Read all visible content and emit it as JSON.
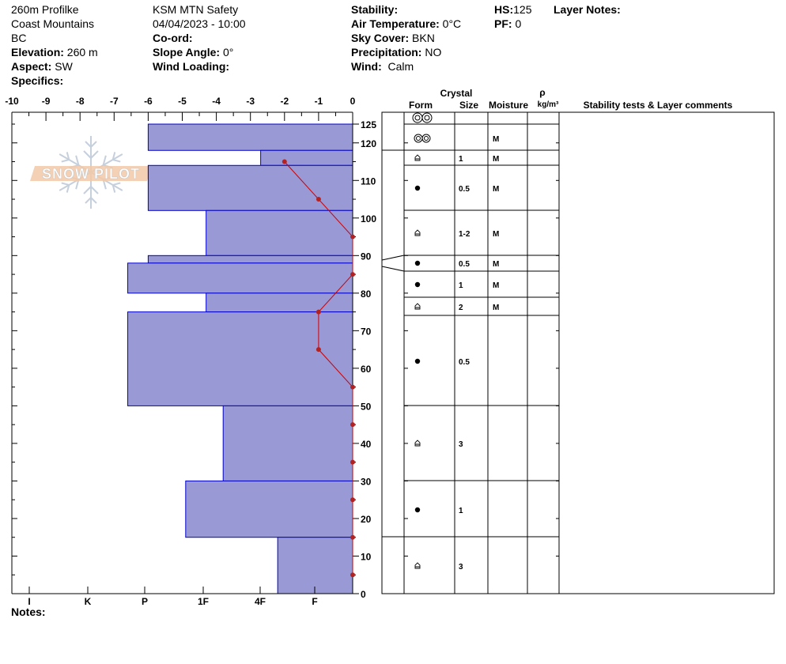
{
  "header": {
    "site_name": "260m Profilke",
    "range": "Coast Mountains",
    "region": "BC",
    "elevation_label": "Elevation:",
    "elevation_value": "260 m",
    "aspect_label": "Aspect:",
    "aspect_value": "SW",
    "specifics_label": "Specifics:",
    "observer": "KSM MTN Safety",
    "datetime": "04/04/2023 - 10:00",
    "coord_label": "Co-ord:",
    "slope_label": "Slope Angle:",
    "slope_value": "0°",
    "wind_loading_label": "Wind Loading:",
    "stability_label": "Stability:",
    "air_temp_label": "Air Temperature:",
    "air_temp_value": "0°C",
    "sky_label": "Sky Cover:",
    "sky_value": "BKN",
    "precip_label": "Precipitation:",
    "precip_value": "NO",
    "wind_label": "Wind:",
    "wind_value": "Calm",
    "hs_label": "HS:",
    "hs_value": "125",
    "pf_label": "PF:",
    "pf_value": "0",
    "layer_notes_label": "Layer Notes:"
  },
  "notes_label": "Notes:",
  "table_headers": {
    "crystal": "Crystal",
    "form": "Form",
    "size": "Size",
    "moisture": "Moisture",
    "rho": "ρ",
    "density_unit": "kg/m³",
    "comments": "Stability tests & Layer comments"
  },
  "watermark": "SNOW PILOT",
  "colors": {
    "bar_fill": "#9999d6",
    "bar_stroke": "#0000cc",
    "temp_line": "#cc0000",
    "temp_point": "#b22222"
  },
  "chart_data": {
    "type": "bar",
    "orientation": "horizontal",
    "x_temp_ticks": [
      -10,
      -9,
      -8,
      -7,
      -6,
      -5,
      -4,
      -3,
      -2,
      -1,
      0
    ],
    "x_temp_range": [
      -10,
      0
    ],
    "hardness_labels": [
      "I",
      "K",
      "P",
      "1F",
      "4F",
      "F"
    ],
    "height_ticks": [
      0,
      10,
      20,
      30,
      40,
      50,
      60,
      70,
      80,
      90,
      100,
      110,
      120,
      125
    ],
    "height_range": [
      0,
      125
    ],
    "hardness_layers": [
      {
        "bottom": 118,
        "top": 125,
        "temp_scale_left": -6.0
      },
      {
        "bottom": 114,
        "top": 118,
        "temp_scale_left": -2.7
      },
      {
        "bottom": 102,
        "top": 114,
        "temp_scale_left": -6.0
      },
      {
        "bottom": 90,
        "top": 102,
        "temp_scale_left": -4.3
      },
      {
        "bottom": 88,
        "top": 90,
        "temp_scale_left": -6.0
      },
      {
        "bottom": 80,
        "top": 88,
        "temp_scale_left": -6.6
      },
      {
        "bottom": 75,
        "top": 80,
        "temp_scale_left": -4.3
      },
      {
        "bottom": 50,
        "top": 75,
        "temp_scale_left": -6.6
      },
      {
        "bottom": 30,
        "top": 50,
        "temp_scale_left": -3.8
      },
      {
        "bottom": 15,
        "top": 30,
        "temp_scale_left": -4.9
      },
      {
        "bottom": 0,
        "top": 15,
        "temp_scale_left": -2.2
      }
    ],
    "temperature_profile": [
      {
        "height": 115,
        "temp": -2
      },
      {
        "height": 105,
        "temp": -1
      },
      {
        "height": 95,
        "temp": 0
      },
      {
        "height": 85,
        "temp": 0
      },
      {
        "height": 75,
        "temp": -1
      },
      {
        "height": 65,
        "temp": -1
      },
      {
        "height": 55,
        "temp": 0
      },
      {
        "height": 45,
        "temp": 0
      },
      {
        "height": 35,
        "temp": 0
      },
      {
        "height": 25,
        "temp": 0
      },
      {
        "height": 15,
        "temp": 0
      },
      {
        "height": 5,
        "temp": 0
      }
    ],
    "layers_table": [
      {
        "bottom": 118,
        "top": 125,
        "form": "double-ring",
        "size": "",
        "moisture": ""
      },
      {
        "bottom": 114,
        "top": 118,
        "form": "double-ring-small",
        "size": "",
        "moisture": "M"
      },
      {
        "bottom": 102,
        "top": 114,
        "form": "faceted",
        "size": "1",
        "moisture": "M"
      },
      {
        "bottom": 90,
        "top": 102,
        "form": "dot",
        "size": "0.5",
        "moisture": "M"
      },
      {
        "bottom": 88,
        "top": 90,
        "form": "faceted",
        "size": "1-2",
        "moisture": "M"
      },
      {
        "bottom": 80,
        "top": 88,
        "form": "dot",
        "size": "0.5",
        "moisture": "M"
      },
      {
        "bottom": 75,
        "top": 80,
        "form": "dot",
        "size": "1",
        "moisture": "M"
      },
      {
        "bottom": 50,
        "top": 75,
        "form": "faceted",
        "size": "2",
        "moisture": "M"
      },
      {
        "bottom": 30,
        "top": 50,
        "form": "dot",
        "size": "0.5",
        "moisture": ""
      },
      {
        "bottom": 15,
        "top": 30,
        "form": "faceted",
        "size": "3",
        "moisture": ""
      },
      {
        "bottom": 0,
        "top": 15,
        "form": "dot",
        "size": "1",
        "moisture": ""
      }
    ],
    "extra_bottom_layer": {
      "form": "faceted",
      "size": "3"
    }
  }
}
